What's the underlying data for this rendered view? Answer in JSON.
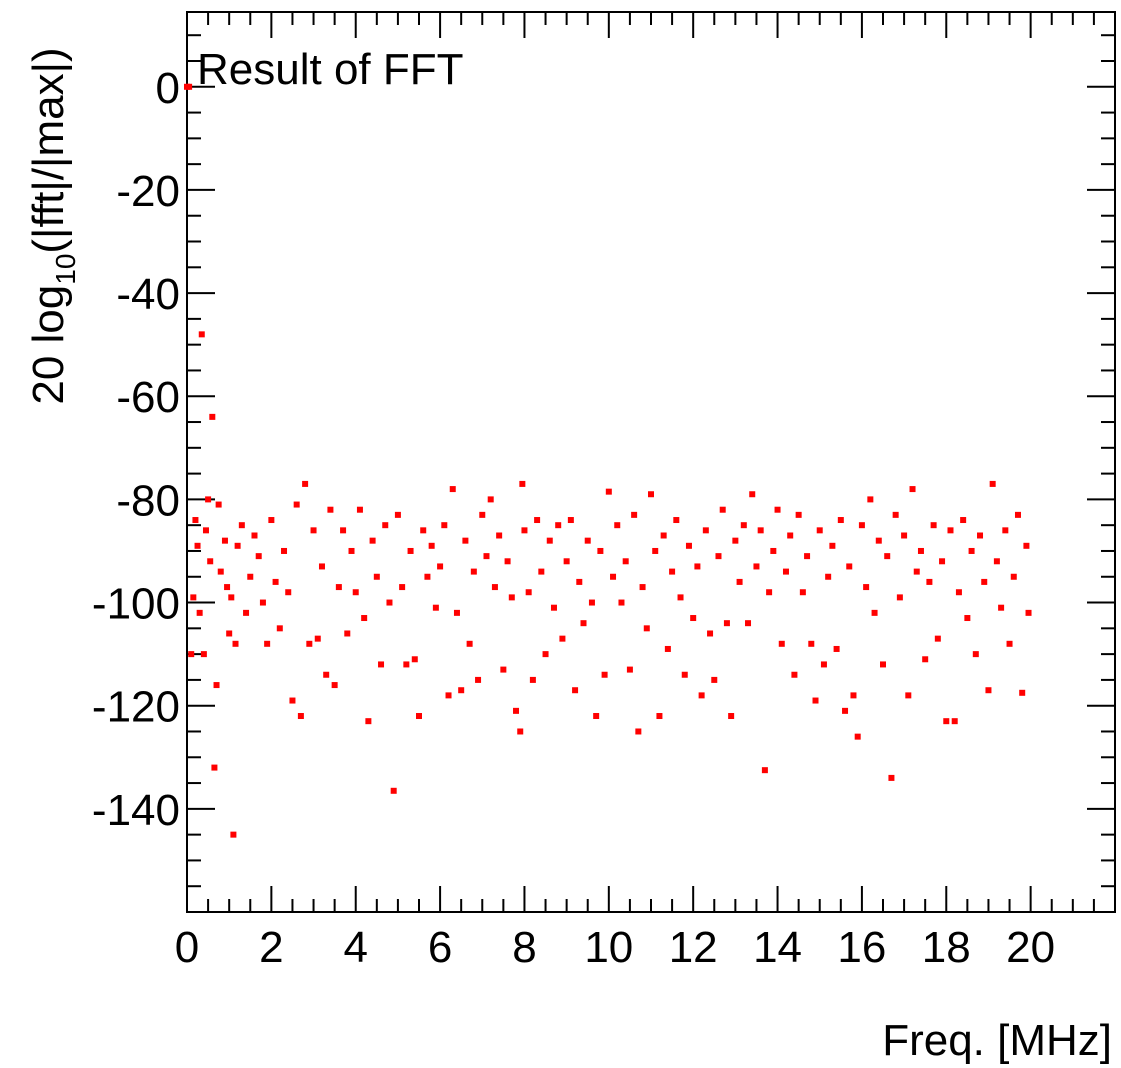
{
  "chart_data": {
    "type": "scatter",
    "title": "Result of FFT",
    "xlabel": "Freq. [MHz]",
    "ylabel": {
      "main": "20 log",
      "sub": "10",
      "rest": "(|fft|/|max|)"
    },
    "xlim": [
      0,
      22
    ],
    "ylim": [
      -160,
      14.5
    ],
    "xticks": [
      0,
      2,
      4,
      6,
      8,
      10,
      12,
      14,
      16,
      18,
      20
    ],
    "yticks": [
      -140,
      -120,
      -100,
      -80,
      -60,
      -40,
      -20,
      0
    ],
    "xminorticks": [
      0.5,
      1,
      1.5,
      2.5,
      3,
      3.5,
      4.5,
      5,
      5.5,
      6.5,
      7,
      7.5,
      8.5,
      9,
      9.5,
      10.5,
      11,
      11.5,
      12.5,
      13,
      13.5,
      14.5,
      15,
      15.5,
      16.5,
      17,
      17.5,
      18.5,
      19,
      19.5,
      20.5,
      21,
      21.5
    ],
    "yminorticks": [
      -155,
      -150,
      -145,
      -135,
      -130,
      -125,
      -115,
      -110,
      -105,
      -95,
      -90,
      -85,
      -75,
      -70,
      -65,
      -55,
      -50,
      -45,
      -35,
      -30,
      -25,
      -15,
      -10,
      -5,
      5,
      10
    ],
    "series": [
      {
        "color": "#ff0000",
        "x": [
          0,
          0.05,
          0.1,
          0.15,
          0.2,
          0.25,
          0.3,
          0.35,
          0.4,
          0.45,
          0.5,
          0.55,
          0.6,
          0.65,
          0.7,
          0.75,
          0.8,
          0.9,
          0.95,
          1.0,
          1.05,
          1.1,
          1.15,
          1.2,
          1.3,
          1.4,
          1.5,
          1.6,
          1.7,
          1.8,
          1.9,
          2.0,
          2.1,
          2.2,
          2.3,
          2.4,
          2.5,
          2.6,
          2.7,
          2.8,
          2.9,
          3.0,
          3.1,
          3.2,
          3.3,
          3.4,
          3.5,
          3.6,
          3.7,
          3.8,
          3.9,
          4.0,
          4.1,
          4.2,
          4.3,
          4.4,
          4.5,
          4.6,
          4.7,
          4.8,
          4.9,
          5.0,
          5.1,
          5.2,
          5.3,
          5.4,
          5.5,
          5.6,
          5.7,
          5.8,
          5.9,
          6.0,
          6.1,
          6.2,
          6.3,
          6.4,
          6.5,
          6.6,
          6.7,
          6.8,
          6.9,
          7.0,
          7.1,
          7.2,
          7.3,
          7.4,
          7.5,
          7.6,
          7.7,
          7.8,
          7.9,
          7.95,
          8.0,
          8.1,
          8.2,
          8.3,
          8.4,
          8.5,
          8.6,
          8.7,
          8.8,
          8.9,
          9.0,
          9.1,
          9.2,
          9.3,
          9.4,
          9.5,
          9.6,
          9.7,
          9.8,
          9.9,
          10.0,
          10.1,
          10.2,
          10.3,
          10.4,
          10.5,
          10.6,
          10.7,
          10.8,
          10.9,
          11.0,
          11.1,
          11.2,
          11.3,
          11.4,
          11.5,
          11.6,
          11.7,
          11.8,
          11.9,
          12.0,
          12.1,
          12.2,
          12.3,
          12.4,
          12.5,
          12.6,
          12.7,
          12.8,
          12.9,
          13.0,
          13.1,
          13.2,
          13.3,
          13.4,
          13.5,
          13.6,
          13.7,
          13.8,
          13.9,
          14.0,
          14.1,
          14.2,
          14.3,
          14.4,
          14.5,
          14.6,
          14.7,
          14.8,
          14.9,
          15.0,
          15.1,
          15.2,
          15.3,
          15.4,
          15.5,
          15.6,
          15.7,
          15.8,
          15.9,
          16.0,
          16.1,
          16.2,
          16.3,
          16.4,
          16.5,
          16.6,
          16.7,
          16.8,
          16.9,
          17.0,
          17.1,
          17.2,
          17.3,
          17.4,
          17.5,
          17.6,
          17.7,
          17.8,
          17.9,
          18.0,
          18.1,
          18.2,
          18.3,
          18.4,
          18.5,
          18.6,
          18.7,
          18.8,
          18.9,
          19.0,
          19.1,
          19.2,
          19.3,
          19.4,
          19.5,
          19.6,
          19.7,
          19.8,
          19.9,
          19.95
        ],
        "values": [
          0,
          0,
          -110,
          -99,
          -84,
          -89,
          -102,
          -48,
          -110,
          -86,
          -80,
          -92,
          -64,
          -132,
          -116,
          -81,
          -94,
          -88,
          -97,
          -106,
          -99,
          -145,
          -108,
          -89,
          -85,
          -102,
          -95,
          -87,
          -91,
          -100,
          -108,
          -84,
          -96,
          -105,
          -90,
          -98,
          -119,
          -81,
          -122,
          -77,
          -108,
          -86,
          -107,
          -93,
          -114,
          -82,
          -116,
          -97,
          -86,
          -106,
          -90,
          -98,
          -82,
          -103,
          -123,
          -88,
          -95,
          -112,
          -85,
          -100,
          -136.5,
          -83,
          -97,
          -112,
          -90,
          -111,
          -122,
          -86,
          -95,
          -89,
          -101,
          -93,
          -85,
          -118,
          -78,
          -102,
          -117,
          -88,
          -108,
          -94,
          -115,
          -83,
          -91,
          -80,
          -97,
          -87,
          -113,
          -92,
          -99,
          -121,
          -125,
          -77,
          -86,
          -98,
          -115,
          -84,
          -94,
          -110,
          -88,
          -101,
          -85,
          -107,
          -92,
          -84,
          -117,
          -96,
          -104,
          -88,
          -100,
          -122,
          -90,
          -114,
          -78.5,
          -95,
          -85,
          -100,
          -92,
          -113,
          -83,
          -125,
          -97,
          -105,
          -79,
          -90,
          -122,
          -87,
          -109,
          -94,
          -84,
          -99,
          -114,
          -89,
          -103,
          -93,
          -118,
          -86,
          -106,
          -115,
          -91,
          -82,
          -104,
          -122,
          -88,
          -96,
          -85,
          -104,
          -79,
          -93,
          -86,
          -132.5,
          -98,
          -90,
          -82,
          -108,
          -94,
          -87,
          -114,
          -83,
          -98,
          -91,
          -108,
          -119,
          -86,
          -112,
          -95,
          -89,
          -109,
          -84,
          -121,
          -93,
          -118,
          -126,
          -85,
          -97,
          -80,
          -102,
          -88,
          -112,
          -91,
          -134,
          -83,
          -99,
          -87,
          -118,
          -78,
          -94,
          -90,
          -111,
          -96,
          -85,
          -107,
          -92,
          -123,
          -86,
          -123,
          -98,
          -84,
          -103,
          -90,
          -110,
          -87,
          -96,
          -117,
          -77,
          -92,
          -101,
          -86,
          -108,
          -95,
          -83,
          -117.5,
          -89,
          -102
        ]
      }
    ]
  }
}
